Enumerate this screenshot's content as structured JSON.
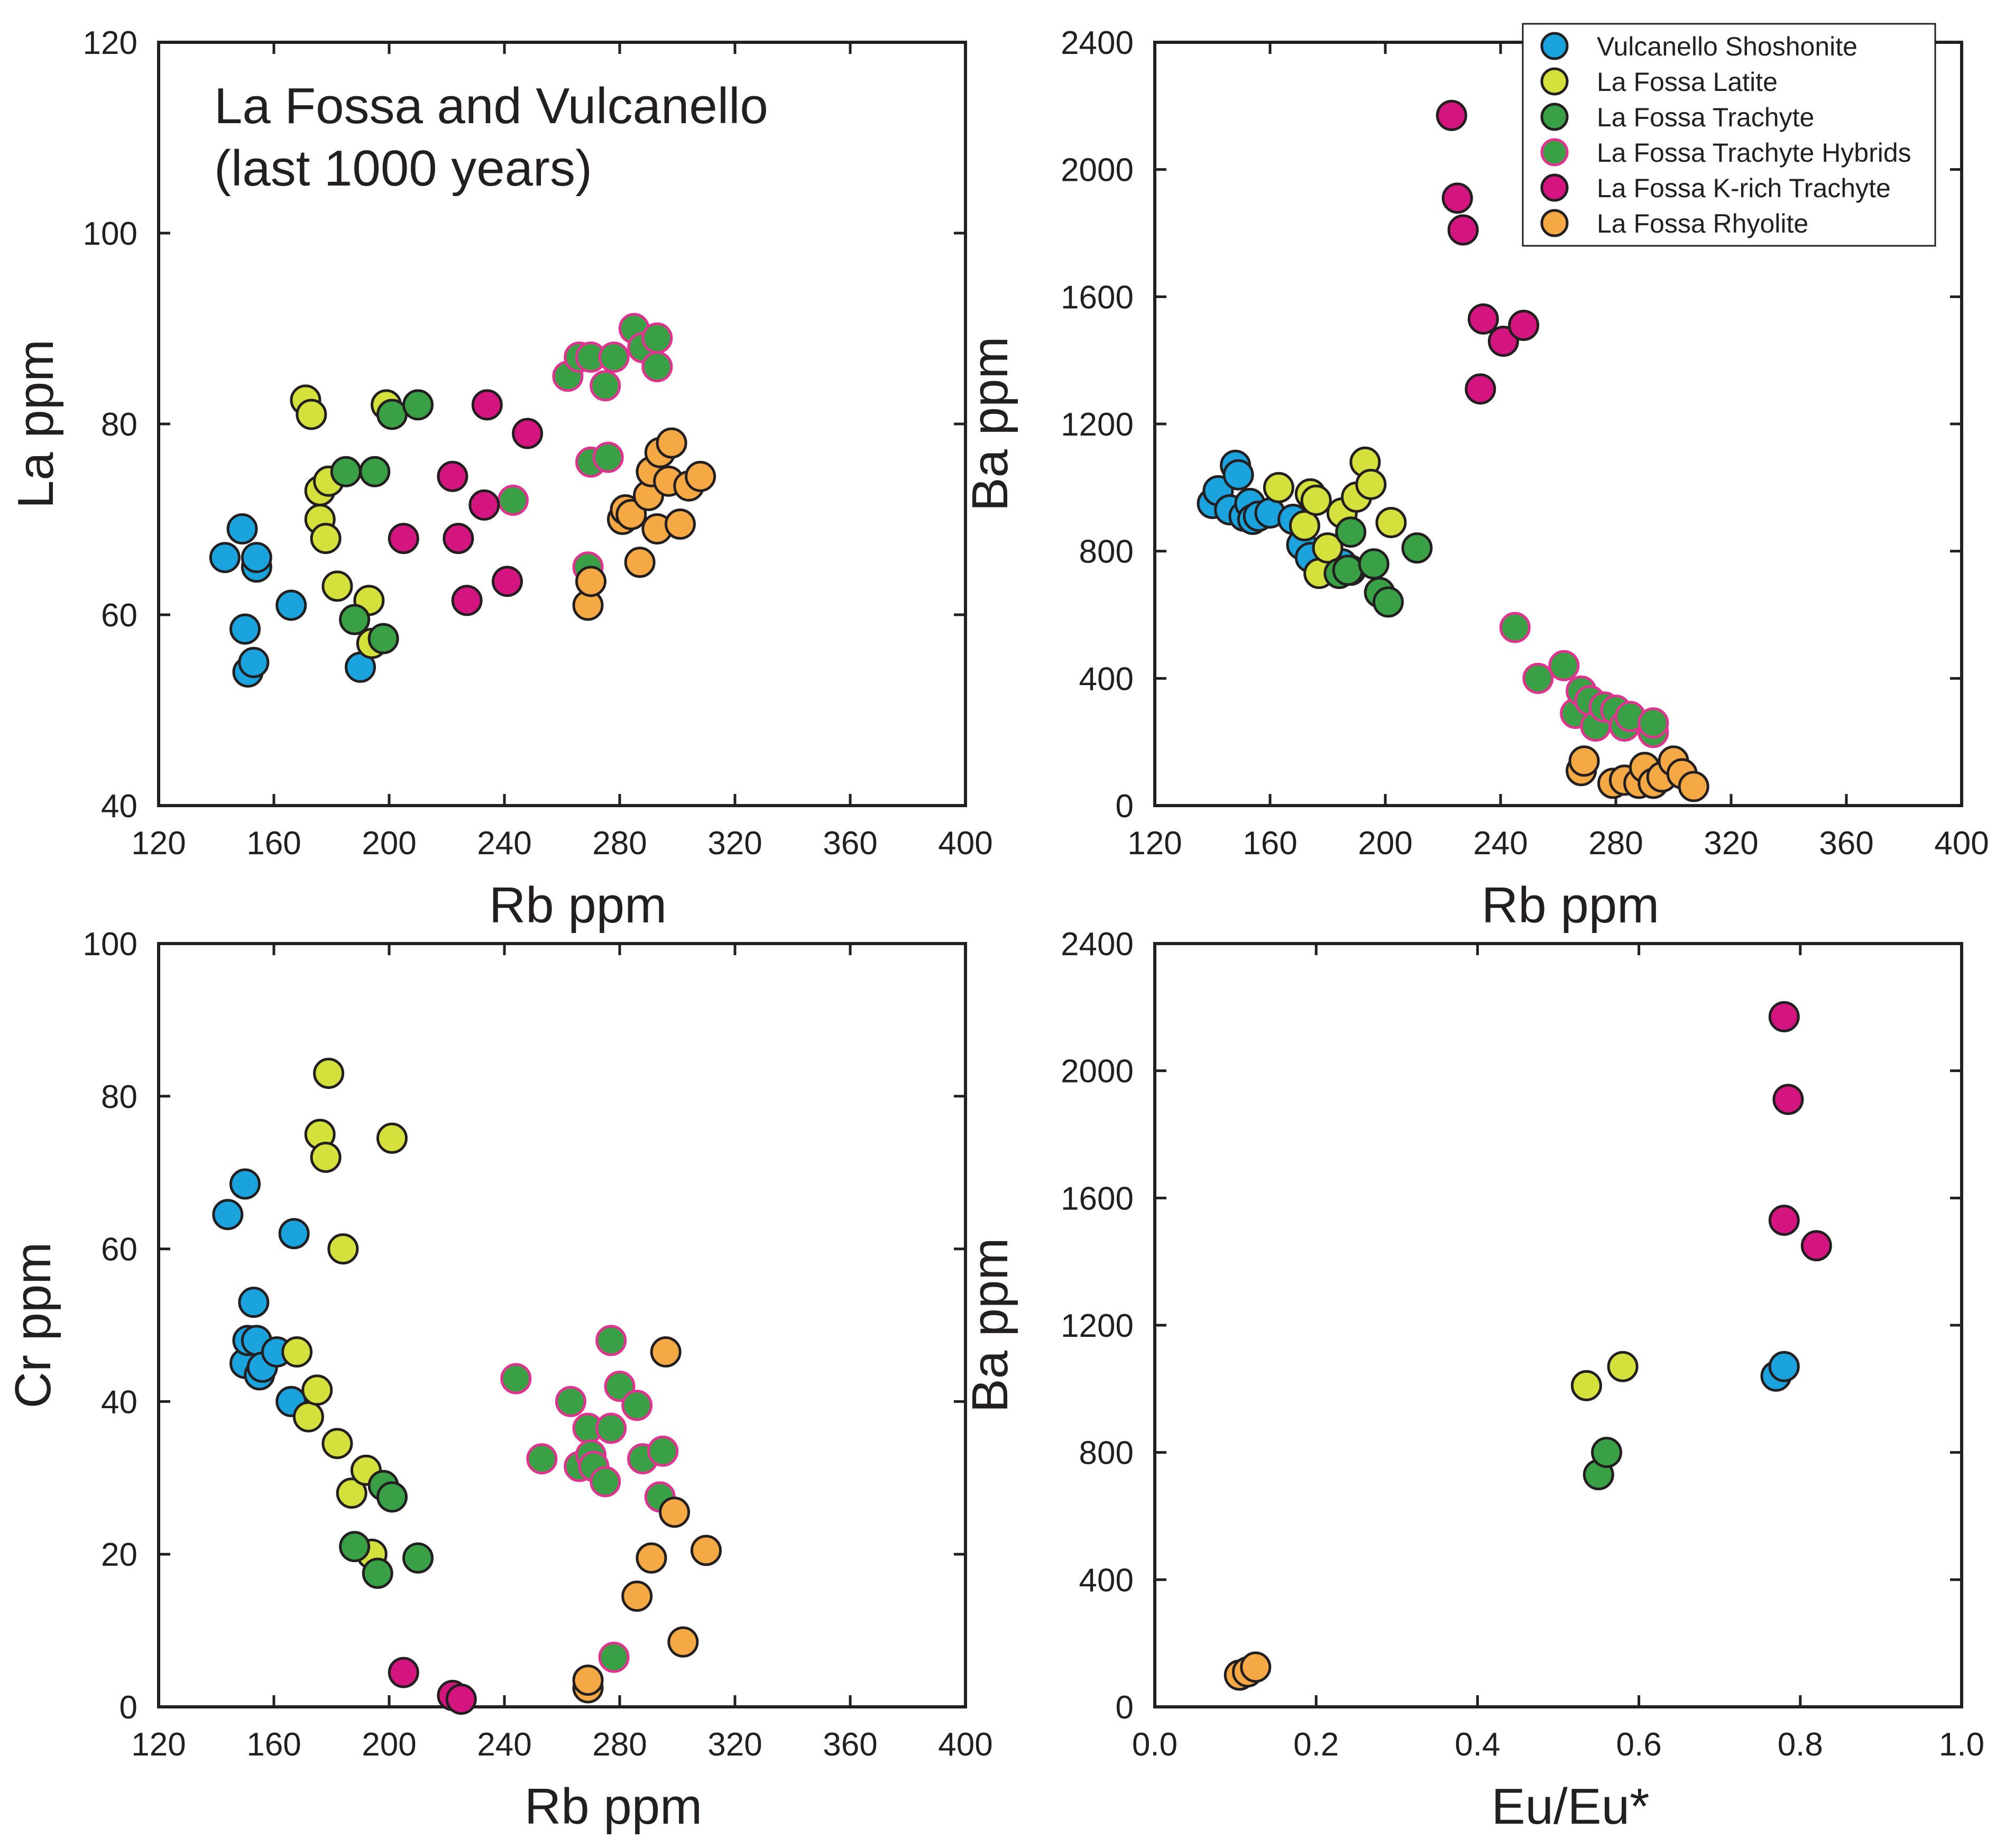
{
  "colors": {
    "shoshonite": "#1aa3dc",
    "latite": "#d4e03c",
    "trachyte": "#3aa046",
    "hybrid_fill": "#3aa046",
    "hybrid_edge": "#e0338f",
    "krich": "#d4147f",
    "rhyolite": "#f5a945",
    "outline": "#231f20"
  },
  "legend": [
    {
      "key": "shoshonite",
      "label": "Vulcanello Shoshonite"
    },
    {
      "key": "latite",
      "label": "La Fossa Latite"
    },
    {
      "key": "trachyte",
      "label": "La Fossa Trachyte"
    },
    {
      "key": "hybrid",
      "label": "La Fossa Trachyte Hybrids"
    },
    {
      "key": "krich",
      "label": "La Fossa K-rich Trachyte"
    },
    {
      "key": "rhyolite",
      "label": "La Fossa Rhyolite"
    }
  ],
  "chart_data": [
    {
      "id": "la",
      "type": "scatter",
      "annotation": [
        "La Fossa and Vulcanello",
        "(last 1000 years)"
      ],
      "xlabel": "Rb ppm",
      "ylabel": "La ppm",
      "xlim": [
        120,
        400
      ],
      "ylim": [
        40,
        120
      ],
      "xticks": [
        120,
        160,
        200,
        240,
        280,
        320,
        360,
        400
      ],
      "yticks": [
        40,
        60,
        80,
        100,
        120
      ],
      "series": [
        {
          "key": "shoshonite",
          "points": [
            [
              143,
              66
            ],
            [
              149,
              69
            ],
            [
              150,
              58.5
            ],
            [
              151,
              54
            ],
            [
              153,
              55
            ],
            [
              154,
              65
            ],
            [
              154,
              66
            ],
            [
              166,
              61
            ],
            [
              190,
              54.5
            ]
          ]
        },
        {
          "key": "latite",
          "points": [
            [
              171,
              82.5
            ],
            [
              173,
              81
            ],
            [
              176,
              70
            ],
            [
              176,
              73
            ],
            [
              178,
              68
            ],
            [
              179,
              74
            ],
            [
              182,
              63
            ],
            [
              193,
              61.5
            ],
            [
              194,
              57
            ],
            [
              199,
              82
            ]
          ]
        },
        {
          "key": "trachyte",
          "points": [
            [
              185,
              75
            ],
            [
              188,
              59.5
            ],
            [
              195,
              75
            ],
            [
              198,
              57.5
            ],
            [
              201,
              81
            ],
            [
              210,
              82
            ]
          ]
        },
        {
          "key": "hybrid",
          "points": [
            [
              243,
              72
            ],
            [
              262,
              85
            ],
            [
              266,
              87
            ],
            [
              269,
              65
            ],
            [
              270,
              76
            ],
            [
              270,
              87
            ],
            [
              275,
              84
            ],
            [
              276,
              76.5
            ],
            [
              278,
              87
            ],
            [
              285,
              90
            ],
            [
              288,
              88
            ],
            [
              293,
              89
            ],
            [
              293,
              86
            ]
          ]
        },
        {
          "key": "krich",
          "points": [
            [
              205,
              68
            ],
            [
              222,
              74.5
            ],
            [
              224,
              68
            ],
            [
              227,
              61.5
            ],
            [
              233,
              71.5
            ],
            [
              234,
              82
            ],
            [
              241,
              63.5
            ],
            [
              248,
              79
            ]
          ]
        },
        {
          "key": "rhyolite",
          "points": [
            [
              269,
              61
            ],
            [
              270,
              63.5
            ],
            [
              281,
              70
            ],
            [
              282,
              71
            ],
            [
              284,
              70.5
            ],
            [
              287,
              65.5
            ],
            [
              290,
              72.5
            ],
            [
              291,
              75
            ],
            [
              293,
              69
            ],
            [
              294,
              77
            ],
            [
              297,
              74
            ],
            [
              298,
              78
            ],
            [
              301,
              69.5
            ],
            [
              304,
              73.5
            ],
            [
              308,
              74.5
            ]
          ]
        }
      ]
    },
    {
      "id": "ba_rb",
      "type": "scatter",
      "xlabel": "Rb ppm",
      "ylabel": "Ba ppm",
      "xlim": [
        120,
        400
      ],
      "ylim": [
        0,
        2400
      ],
      "xticks": [
        120,
        160,
        200,
        240,
        280,
        320,
        360,
        400
      ],
      "yticks": [
        0,
        400,
        800,
        1200,
        1600,
        2000,
        2400
      ],
      "series": [
        {
          "key": "shoshonite",
          "points": [
            [
              140,
              950
            ],
            [
              142,
              990
            ],
            [
              146,
              930
            ],
            [
              148,
              1070
            ],
            [
              149,
              1040
            ],
            [
              151,
              910
            ],
            [
              153,
              950
            ],
            [
              154,
              900
            ],
            [
              156,
              910
            ],
            [
              160,
              920
            ],
            [
              168,
              900
            ],
            [
              171,
              820
            ],
            [
              174,
              780
            ],
            [
              185,
              760
            ],
            [
              188,
              740
            ]
          ]
        },
        {
          "key": "latite",
          "points": [
            [
              163,
              1000
            ],
            [
              172,
              880
            ],
            [
              174,
              980
            ],
            [
              176,
              960
            ],
            [
              177,
              730
            ],
            [
              180,
              810
            ],
            [
              185,
              920
            ],
            [
              190,
              970
            ],
            [
              193,
              1080
            ],
            [
              195,
              1010
            ],
            [
              202,
              890
            ]
          ]
        },
        {
          "key": "trachyte",
          "points": [
            [
              184,
              730
            ],
            [
              187,
              740
            ],
            [
              188,
              860
            ],
            [
              196,
              760
            ],
            [
              198,
              670
            ],
            [
              201,
              640
            ],
            [
              211,
              810
            ]
          ]
        },
        {
          "key": "hybrid",
          "points": [
            [
              245,
              560
            ],
            [
              253,
              400
            ],
            [
              262,
              440
            ],
            [
              266,
              290
            ],
            [
              268,
              360
            ],
            [
              271,
              330
            ],
            [
              273,
              250
            ],
            [
              276,
              310
            ],
            [
              280,
              300
            ],
            [
              283,
              250
            ],
            [
              285,
              280
            ],
            [
              293,
              230
            ],
            [
              293,
              260
            ]
          ]
        },
        {
          "key": "krich",
          "points": [
            [
              223,
              2170
            ],
            [
              225,
              1910
            ],
            [
              227,
              1810
            ],
            [
              233,
              1310
            ],
            [
              234,
              1530
            ],
            [
              241,
              1460
            ],
            [
              248,
              1510
            ]
          ]
        },
        {
          "key": "rhyolite",
          "points": [
            [
              268,
              110
            ],
            [
              269,
              140
            ],
            [
              279,
              70
            ],
            [
              283,
              80
            ],
            [
              288,
              70
            ],
            [
              290,
              120
            ],
            [
              293,
              70
            ],
            [
              296,
              90
            ],
            [
              300,
              140
            ],
            [
              303,
              100
            ],
            [
              307,
              60
            ]
          ]
        }
      ]
    },
    {
      "id": "cr",
      "type": "scatter",
      "xlabel": "Rb ppm",
      "ylabel": "Cr ppm",
      "xlim": [
        120,
        400
      ],
      "ylim": [
        0,
        100
      ],
      "xticks": [
        120,
        160,
        200,
        240,
        280,
        320,
        360,
        400
      ],
      "yticks": [
        0,
        20,
        40,
        60,
        80,
        100
      ],
      "series": [
        {
          "key": "shoshonite",
          "points": [
            [
              144,
              64.5
            ],
            [
              150,
              68.5
            ],
            [
              150,
              45
            ],
            [
              151,
              48
            ],
            [
              153,
              53
            ],
            [
              154,
              48
            ],
            [
              155,
              43.5
            ],
            [
              156,
              44.5
            ],
            [
              161,
              46.5
            ],
            [
              166,
              40
            ],
            [
              167,
              62
            ]
          ]
        },
        {
          "key": "latite",
          "points": [
            [
              168,
              46.5
            ],
            [
              172,
              38
            ],
            [
              175,
              41.5
            ],
            [
              176,
              75
            ],
            [
              178,
              72
            ],
            [
              179,
              83
            ],
            [
              182,
              34.5
            ],
            [
              184,
              60
            ],
            [
              187,
              28
            ],
            [
              192,
              31
            ],
            [
              194,
              20
            ],
            [
              201,
              74.5
            ]
          ]
        },
        {
          "key": "trachyte",
          "points": [
            [
              188,
              21
            ],
            [
              196,
              17.5
            ],
            [
              198,
              29
            ],
            [
              201,
              27.5
            ],
            [
              210,
              19.5
            ]
          ]
        },
        {
          "key": "hybrid",
          "points": [
            [
              244,
              43
            ],
            [
              253,
              32.5
            ],
            [
              263,
              40
            ],
            [
              266,
              31.5
            ],
            [
              269,
              36.5
            ],
            [
              270,
              33
            ],
            [
              271,
              31.5
            ],
            [
              275,
              29.5
            ],
            [
              277,
              48
            ],
            [
              277,
              36.5
            ],
            [
              278,
              6.5
            ],
            [
              280,
              42
            ],
            [
              286,
              39.5
            ],
            [
              288,
              32.5
            ],
            [
              294,
              27.5
            ],
            [
              295,
              33.5
            ]
          ]
        },
        {
          "key": "krich",
          "points": [
            [
              205,
              4.5
            ],
            [
              222,
              1.5
            ],
            [
              225,
              1
            ]
          ]
        },
        {
          "key": "rhyolite",
          "points": [
            [
              269,
              2.5
            ],
            [
              269,
              3.5
            ],
            [
              286,
              14.5
            ],
            [
              291,
              19.5
            ],
            [
              296,
              46.5
            ],
            [
              299,
              25.5
            ],
            [
              302,
              8.5
            ],
            [
              310,
              20.5
            ]
          ]
        }
      ]
    },
    {
      "id": "ba_eu",
      "type": "scatter",
      "xlabel": "Eu/Eu*",
      "ylabel": "Ba ppm",
      "xlim": [
        0.0,
        1.0
      ],
      "ylim": [
        0,
        2400
      ],
      "xticks": [
        "0.0",
        "0.2",
        "0.4",
        "0.6",
        "0.8",
        "1.0"
      ],
      "yticks": [
        0,
        400,
        800,
        1200,
        1600,
        2000,
        2400
      ],
      "series": [
        {
          "key": "shoshonite",
          "points": [
            [
              0.77,
              1040
            ],
            [
              0.78,
              1070
            ]
          ]
        },
        {
          "key": "latite",
          "points": [
            [
              0.535,
              1010
            ],
            [
              0.58,
              1070
            ]
          ]
        },
        {
          "key": "trachyte",
          "points": [
            [
              0.55,
              730
            ],
            [
              0.56,
              800
            ]
          ]
        },
        {
          "key": "hybrid",
          "points": []
        },
        {
          "key": "krich",
          "points": [
            [
              0.78,
              2170
            ],
            [
              0.78,
              1530
            ],
            [
              0.785,
              1910
            ],
            [
              0.82,
              1450
            ]
          ]
        },
        {
          "key": "rhyolite",
          "points": [
            [
              0.105,
              100
            ],
            [
              0.115,
              110
            ],
            [
              0.125,
              125
            ]
          ]
        }
      ]
    }
  ]
}
